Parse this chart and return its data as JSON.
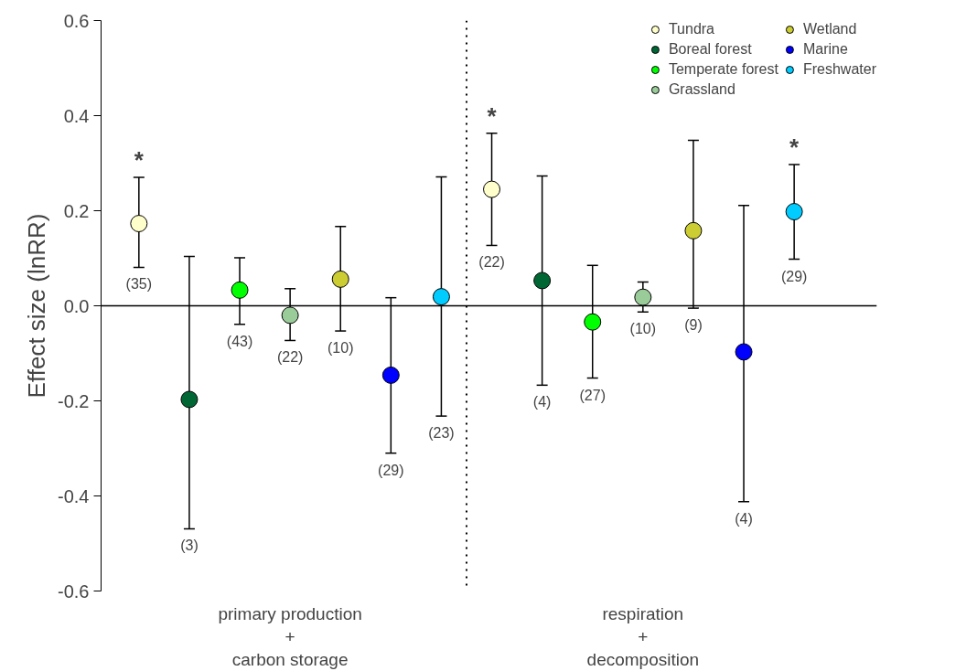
{
  "chart_data": {
    "type": "scatter",
    "ylabel": "Effect size (lnRR)",
    "categories": [
      null,
      null,
      null,
      "primary production\n+\ncarbon storage",
      null,
      null,
      null,
      null,
      null,
      null,
      "respiration\n+\ndecomposition",
      null,
      null,
      null
    ],
    "ylim": [
      -0.6,
      0.6
    ],
    "yticks": [
      {
        "value": -0.6,
        "label": "-0.6"
      },
      {
        "value": -0.4,
        "label": "-0.4"
      },
      {
        "value": -0.2,
        "label": "-0.2"
      },
      {
        "value": 0,
        "label": "0.0"
      },
      {
        "value": 0.2,
        "label": "0.2"
      },
      {
        "value": 0.4,
        "label": "0.4"
      },
      {
        "value": 0.6,
        "label": "0.6"
      }
    ],
    "grid": false,
    "legend": "top right",
    "marker": "circle",
    "series": [
      {
        "name": "Tundra",
        "color": "#ffffcc",
        "values": [
          0.173,
          null,
          null,
          null,
          null,
          null,
          null,
          0.245,
          null,
          null,
          null,
          null,
          null,
          null
        ],
        "errors": [
          [
            0.081,
            0.27
          ],
          null,
          null,
          null,
          null,
          null,
          null,
          [
            0.127,
            0.363
          ],
          null,
          null,
          null,
          null,
          null,
          null
        ]
      },
      {
        "name": "Boreal forest",
        "color": "#006633",
        "values": [
          null,
          -0.197,
          null,
          null,
          null,
          null,
          null,
          null,
          0.053,
          null,
          null,
          null,
          null,
          null
        ],
        "errors": [
          null,
          [
            -0.469,
            0.104
          ],
          null,
          null,
          null,
          null,
          null,
          null,
          [
            -0.167,
            0.273
          ],
          null,
          null,
          null,
          null,
          null
        ]
      },
      {
        "name": "Temperate forest",
        "color": "#00ff00",
        "values": [
          null,
          null,
          0.033,
          null,
          null,
          null,
          null,
          null,
          null,
          -0.034,
          null,
          null,
          null,
          null
        ],
        "errors": [
          null,
          null,
          [
            -0.039,
            0.101
          ],
          null,
          null,
          null,
          null,
          null,
          null,
          [
            -0.152,
            0.085
          ],
          null,
          null,
          null,
          null
        ]
      },
      {
        "name": "Grassland",
        "color": "#99cc99",
        "values": [
          null,
          null,
          null,
          -0.02,
          null,
          null,
          null,
          null,
          null,
          null,
          0.018,
          null,
          null,
          null
        ],
        "errors": [
          null,
          null,
          null,
          [
            -0.073,
            0.036
          ],
          null,
          null,
          null,
          null,
          null,
          null,
          [
            -0.013,
            0.05
          ],
          null,
          null,
          null
        ]
      },
      {
        "name": "Wetland",
        "color": "#cccc33",
        "values": [
          null,
          null,
          null,
          null,
          0.056,
          null,
          null,
          null,
          null,
          null,
          null,
          0.158,
          null,
          null
        ],
        "errors": [
          null,
          null,
          null,
          null,
          [
            -0.053,
            0.167
          ],
          null,
          null,
          null,
          null,
          null,
          null,
          [
            -0.005,
            0.348
          ],
          null,
          null
        ]
      },
      {
        "name": "Marine",
        "color": "#0000ff",
        "values": [
          null,
          null,
          null,
          null,
          null,
          -0.146,
          null,
          null,
          null,
          null,
          null,
          null,
          -0.097,
          null
        ],
        "errors": [
          null,
          null,
          null,
          null,
          null,
          [
            -0.31,
            0.017
          ],
          null,
          null,
          null,
          null,
          null,
          null,
          [
            -0.412,
            0.211
          ],
          null
        ]
      },
      {
        "name": "Freshwater",
        "color": "#00ccff",
        "values": [
          null,
          null,
          null,
          null,
          null,
          null,
          0.019,
          null,
          null,
          null,
          null,
          null,
          null,
          0.198
        ],
        "errors": [
          null,
          null,
          null,
          null,
          null,
          null,
          [
            -0.232,
            0.271
          ],
          null,
          null,
          null,
          null,
          null,
          null,
          [
            0.098,
            0.297
          ]
        ]
      }
    ],
    "ref_lines": [
      {
        "axis": "y",
        "value": 0,
        "color": "#000000",
        "line_style": "solid"
      }
    ],
    "annotations": [
      {
        "text": "(35)",
        "y": 0.081
      },
      {
        "text": "(22)",
        "y": 0.127
      },
      {
        "text": "(3)",
        "y": -0.469
      },
      {
        "text": "(4)",
        "y": -0.167
      },
      {
        "text": "(43)",
        "y": -0.039
      },
      {
        "text": "(27)",
        "y": -0.152
      },
      {
        "text": "(22)",
        "y": -0.073
      },
      {
        "text": "(10)",
        "y": -0.013
      },
      {
        "text": "(10)",
        "y": -0.053
      },
      {
        "text": "(9)",
        "y": -0.005
      },
      {
        "text": "(29)",
        "y": -0.31
      },
      {
        "text": "(4)",
        "y": -0.412
      },
      {
        "text": "(23)",
        "y": -0.232
      },
      {
        "text": "(29)",
        "y": 0.098
      },
      {
        "text": "*",
        "y": 0.27
      },
      {
        "text": "*",
        "y": 0.363
      },
      {
        "text": "*",
        "y": 0.297
      }
    ]
  }
}
